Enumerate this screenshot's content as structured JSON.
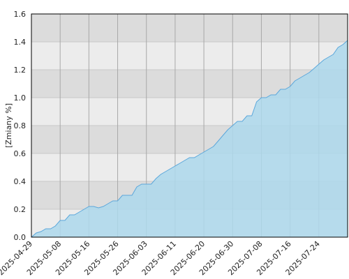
{
  "chart_data": {
    "type": "area",
    "y_label": "[Zmiany %]",
    "categories": [
      "2025-04-29",
      null,
      null,
      null,
      null,
      null,
      "2025-05-08",
      null,
      null,
      null,
      null,
      null,
      "2025-05-16",
      null,
      null,
      null,
      null,
      null,
      "2025-05-26",
      null,
      null,
      null,
      null,
      null,
      "2025-06-03",
      null,
      null,
      null,
      null,
      null,
      "2025-06-11",
      null,
      null,
      null,
      null,
      null,
      "2025-06-20",
      null,
      null,
      null,
      null,
      null,
      "2025-06-30",
      null,
      null,
      null,
      null,
      null,
      "2025-07-08",
      null,
      null,
      null,
      null,
      null,
      "2025-07-16",
      null,
      null,
      null,
      null,
      null,
      "2025-07-24",
      null,
      null,
      null,
      null,
      null,
      null
    ],
    "values": [
      0.0,
      0.03,
      0.04,
      0.06,
      0.06,
      0.08,
      0.12,
      0.12,
      0.16,
      0.16,
      0.18,
      0.2,
      0.22,
      0.22,
      0.21,
      0.22,
      0.24,
      0.26,
      0.26,
      0.3,
      0.3,
      0.3,
      0.36,
      0.38,
      0.38,
      0.38,
      0.42,
      0.45,
      0.47,
      0.49,
      0.51,
      0.53,
      0.55,
      0.57,
      0.57,
      0.59,
      0.61,
      0.63,
      0.65,
      0.69,
      0.73,
      0.77,
      0.8,
      0.83,
      0.83,
      0.87,
      0.87,
      0.97,
      1.0,
      1.0,
      1.02,
      1.02,
      1.06,
      1.06,
      1.08,
      1.12,
      1.14,
      1.16,
      1.18,
      1.21,
      1.24,
      1.27,
      1.29,
      1.31,
      1.36,
      1.38,
      1.41
    ],
    "color": "#5ba7db",
    "fill": "#add8ec",
    "ylim": [
      0,
      1.6
    ],
    "yticks": [
      {
        "value": 0,
        "label": "0.0"
      },
      0.2,
      0.4,
      0.6,
      0.8,
      {
        "value": 1,
        "label": "1.0"
      },
      1.2,
      1.4,
      1.6
    ],
    "band_colors": [
      "#dcdcdc",
      "#ececec"
    ],
    "grid": true
  }
}
